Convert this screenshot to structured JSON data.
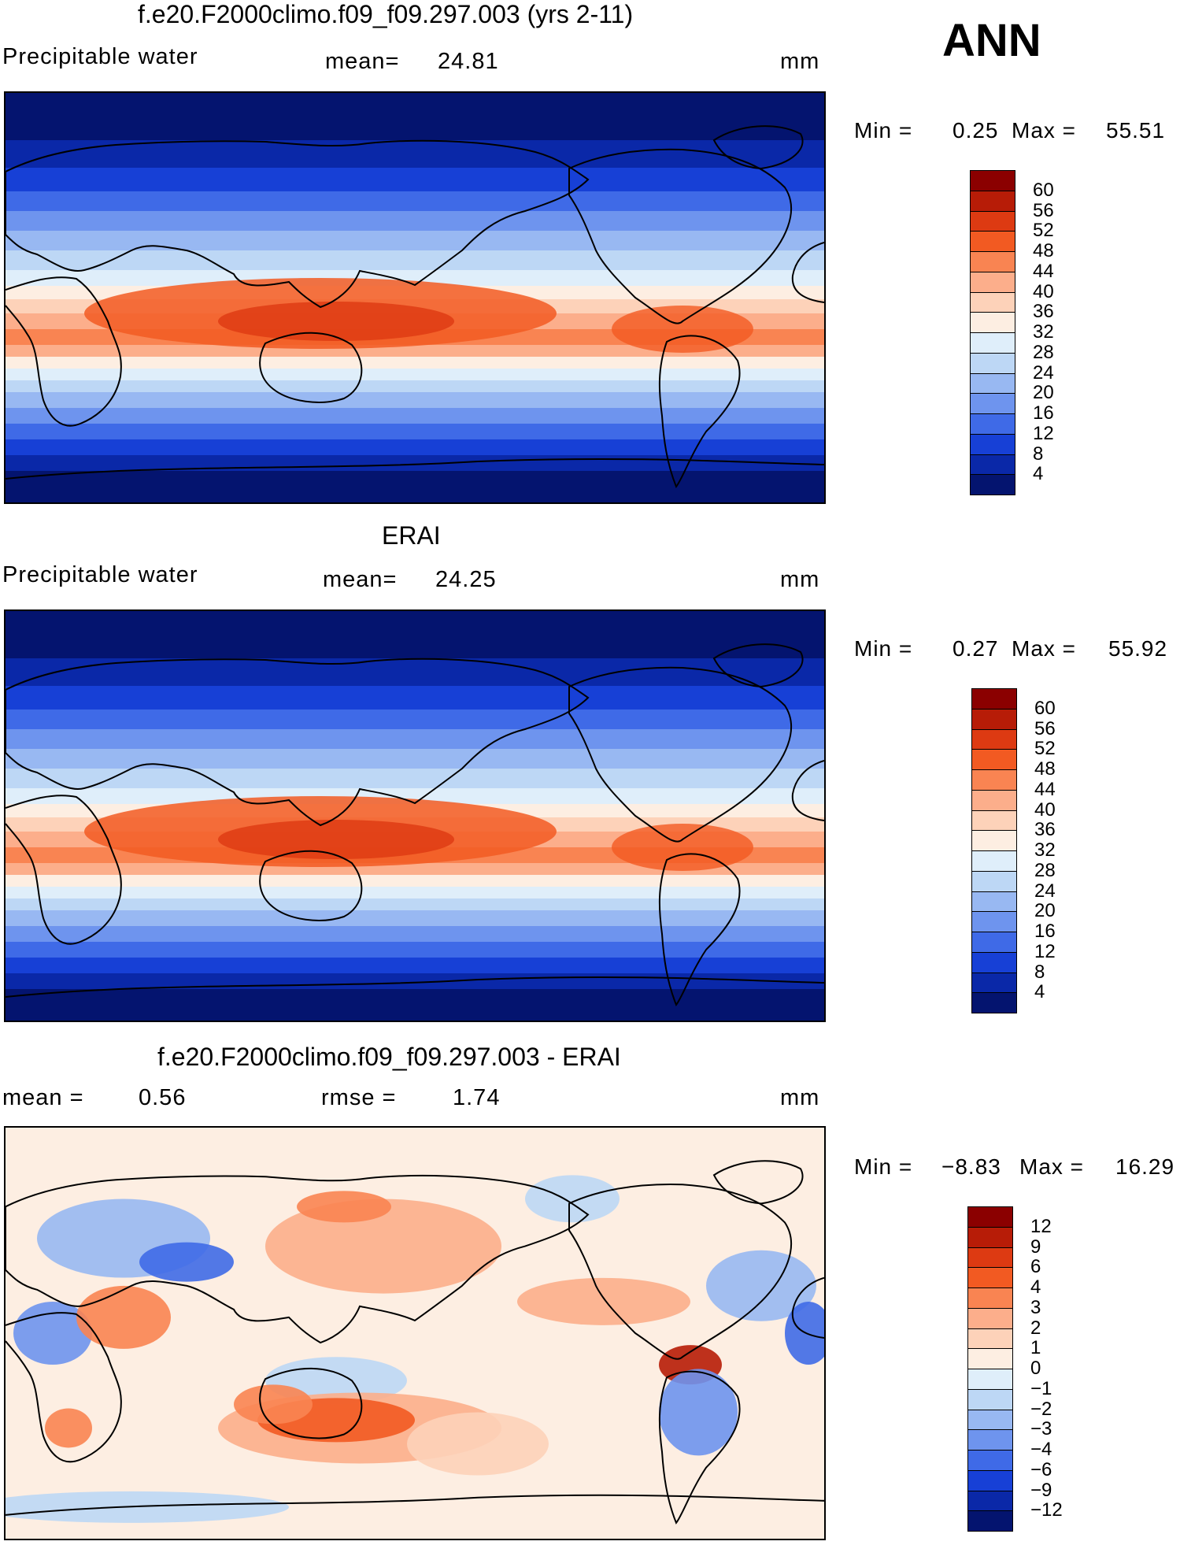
{
  "season": "ANN",
  "panels": [
    {
      "title": "f.e20.F2000climo.f09_f09.297.003 (yrs 2-11)",
      "left_label": "Precipitable water",
      "mean_label": "mean=",
      "mean_value": "24.81",
      "units": "mm",
      "min_label": "Min =",
      "min_value": "0.25",
      "max_label": "Max =",
      "max_value": "55.51"
    },
    {
      "title": "ERAI",
      "left_label": "Precipitable water",
      "mean_label": "mean=",
      "mean_value": "24.25",
      "units": "mm",
      "min_label": "Min =",
      "min_value": "0.27",
      "max_label": "Max =",
      "max_value": "55.92"
    },
    {
      "title": "f.e20.F2000climo.f09_f09.297.003 - ERAI",
      "mean_label": "mean =",
      "mean_value": "0.56",
      "rmse_label": "rmse =",
      "rmse_value": "1.74",
      "units": "mm",
      "min_label": "Min =",
      "min_value": "−8.83",
      "max_label": "Max =",
      "max_value": "16.29"
    }
  ],
  "chart_data": [
    {
      "type": "heatmap",
      "title": "f.e20.F2000climo.f09_f09.297.003 (yrs 2-11)",
      "variable": "Precipitable water",
      "units": "mm",
      "mean": 24.81,
      "min": 0.25,
      "max": 55.51,
      "colorbar_levels": [
        "60",
        "56",
        "52",
        "48",
        "44",
        "40",
        "36",
        "32",
        "28",
        "24",
        "20",
        "16",
        "12",
        "8",
        "4"
      ],
      "colorbar_colors": [
        "#8b0000",
        "#b71c07",
        "#dd3a12",
        "#f25a22",
        "#f98452",
        "#fcae8b",
        "#fdd2b9",
        "#fdeee2",
        "#dfeefa",
        "#bdd7f5",
        "#98b8f2",
        "#6e94ee",
        "#3f6ae7",
        "#1740d6",
        "#0a28a8",
        "#04146f"
      ]
    },
    {
      "type": "heatmap",
      "title": "ERAI",
      "variable": "Precipitable water",
      "units": "mm",
      "mean": 24.25,
      "min": 0.27,
      "max": 55.92,
      "colorbar_levels": [
        "60",
        "56",
        "52",
        "48",
        "44",
        "40",
        "36",
        "32",
        "28",
        "24",
        "20",
        "16",
        "12",
        "8",
        "4"
      ],
      "colorbar_colors": [
        "#8b0000",
        "#b71c07",
        "#dd3a12",
        "#f25a22",
        "#f98452",
        "#fcae8b",
        "#fdd2b9",
        "#fdeee2",
        "#dfeefa",
        "#bdd7f5",
        "#98b8f2",
        "#6e94ee",
        "#3f6ae7",
        "#1740d6",
        "#0a28a8",
        "#04146f"
      ]
    },
    {
      "type": "heatmap",
      "title": "f.e20.F2000climo.f09_f09.297.003 - ERAI",
      "units": "mm",
      "mean": 0.56,
      "rmse": 1.74,
      "min": -8.83,
      "max": 16.29,
      "colorbar_levels": [
        "12",
        "9",
        "6",
        "4",
        "3",
        "2",
        "1",
        "0",
        "−1",
        "−2",
        "−3",
        "−4",
        "−6",
        "−9",
        "−12"
      ],
      "colorbar_colors": [
        "#8b0000",
        "#b71c07",
        "#dd3a12",
        "#f25a22",
        "#f98452",
        "#fcae8b",
        "#fdd2b9",
        "#fdeee2",
        "#dfeefa",
        "#bdd7f5",
        "#98b8f2",
        "#6e94ee",
        "#3f6ae7",
        "#1740d6",
        "#0a28a8",
        "#04146f"
      ]
    }
  ]
}
